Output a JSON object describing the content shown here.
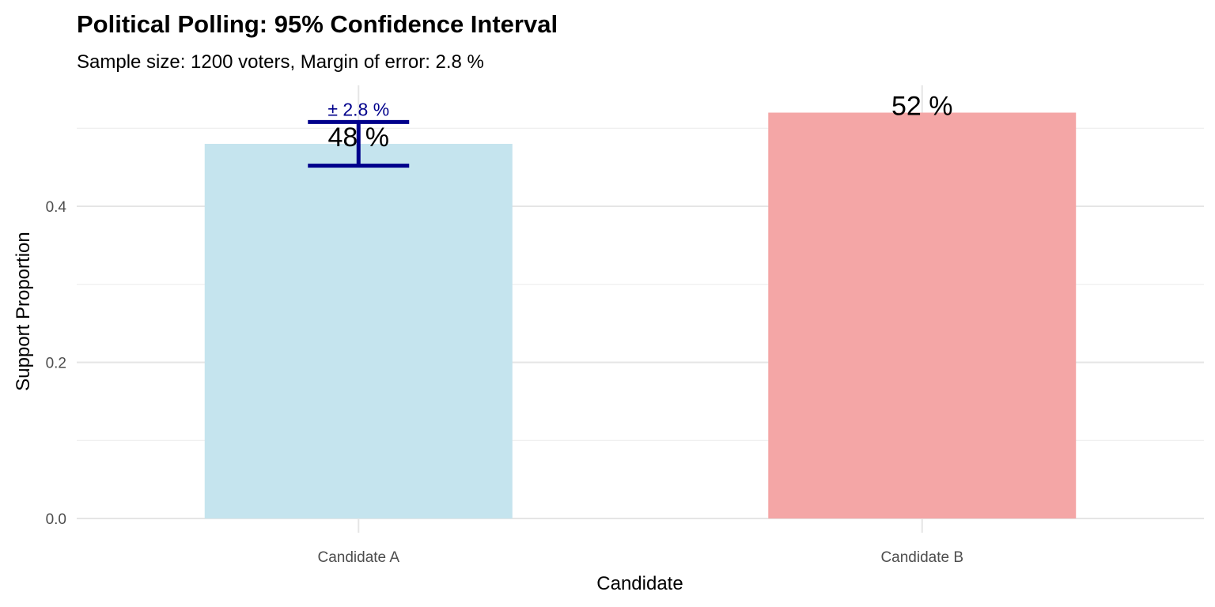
{
  "chart_data": {
    "type": "bar",
    "title": "Political Polling: 95% Confidence Interval",
    "subtitle": "Sample size: 1200 voters, Margin of error: 2.8 %",
    "xlabel": "Candidate",
    "ylabel": "Support Proportion",
    "categories": [
      "Candidate A",
      "Candidate B"
    ],
    "values": [
      0.48,
      0.52
    ],
    "value_labels": [
      "48 %",
      "52 %"
    ],
    "colors": [
      "#c5e4ee",
      "#f4a6a6"
    ],
    "error_bar": {
      "category": "Candidate A",
      "lower": 0.452,
      "upper": 0.508,
      "label": "± 2.8 %",
      "color": "#00008b"
    },
    "ylim": [
      0,
      0.55
    ],
    "yticks": [
      0.0,
      0.2,
      0.4
    ],
    "ytick_labels": [
      "0.0",
      "0.2",
      "0.4"
    ],
    "grid": true,
    "legend": "none"
  }
}
